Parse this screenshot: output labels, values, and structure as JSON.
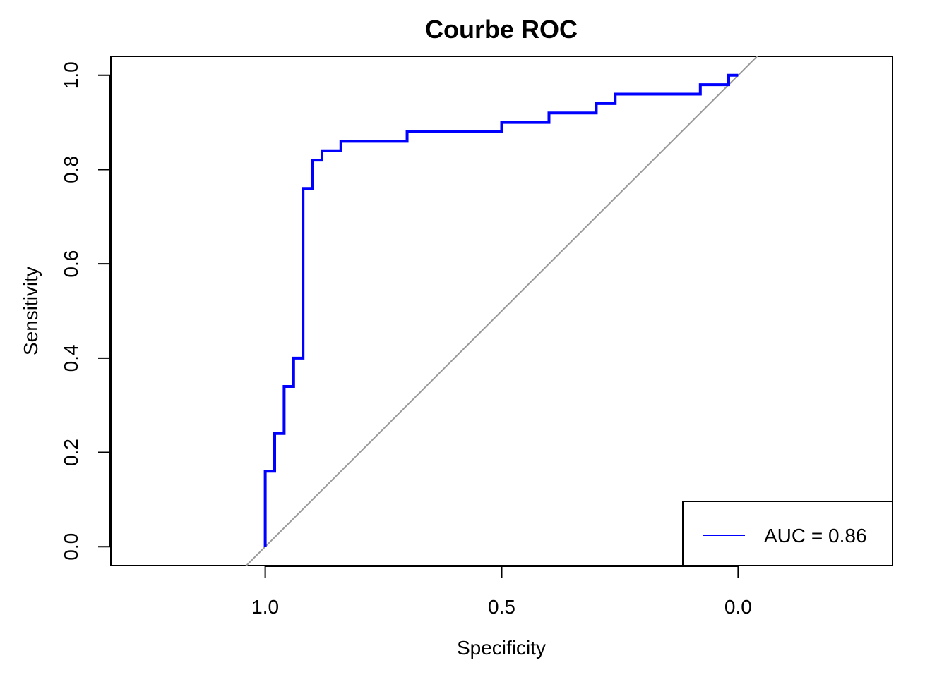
{
  "chart_data": {
    "type": "line",
    "title": "Courbe ROC",
    "xlabel": "Specificity",
    "ylabel": "Sensitivity",
    "x_reversed": true,
    "xlim": [
      1.3264,
      -0.3264
    ],
    "ylim": [
      -0.04,
      1.04
    ],
    "x_ticks": [
      1.0,
      0.5,
      0.0
    ],
    "x_tick_labels": [
      "1.0",
      "0.5",
      "0.0"
    ],
    "y_ticks": [
      0.0,
      0.2,
      0.4,
      0.6,
      0.8,
      1.0
    ],
    "y_tick_labels": [
      "0.0",
      "0.2",
      "0.4",
      "0.6",
      "0.8",
      "1.0"
    ],
    "grid": false,
    "legend_position": "bottom-right",
    "series": [
      {
        "name": "AUC = 0.86",
        "color": "#0000ff",
        "specificity": [
          1.0,
          1.0,
          0.98,
          0.98,
          0.96,
          0.96,
          0.94,
          0.94,
          0.92,
          0.92,
          0.9,
          0.9,
          0.88,
          0.88,
          0.84,
          0.84,
          0.7,
          0.7,
          0.5,
          0.5,
          0.4,
          0.4,
          0.3,
          0.3,
          0.26,
          0.26,
          0.08,
          0.08,
          0.02,
          0.02,
          0.0
        ],
        "sensitivity": [
          0.0,
          0.16,
          0.16,
          0.24,
          0.24,
          0.34,
          0.34,
          0.4,
          0.4,
          0.76,
          0.76,
          0.82,
          0.82,
          0.84,
          0.84,
          0.86,
          0.86,
          0.88,
          0.88,
          0.9,
          0.9,
          0.92,
          0.92,
          0.94,
          0.94,
          0.96,
          0.96,
          0.98,
          0.98,
          1.0,
          1.0
        ]
      }
    ],
    "reference_line": {
      "color": "#999999"
    },
    "legend": {
      "label": "AUC = 0.86"
    }
  }
}
